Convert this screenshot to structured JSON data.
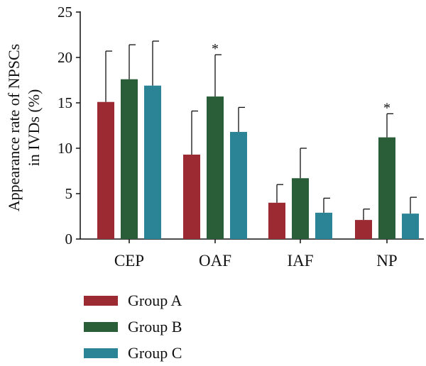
{
  "chart_data": {
    "type": "bar",
    "categories": [
      "CEP",
      "OAF",
      "IAF",
      "NP"
    ],
    "ylabel": [
      "Appearance rate of NPSCs",
      "in IVDs (%)"
    ],
    "ylim": [
      0,
      25
    ],
    "yticks": [
      "0",
      "5",
      "10",
      "15",
      "20",
      "25"
    ],
    "series": [
      {
        "name": "Group A",
        "color": "#9b2a32",
        "values": [
          15.1,
          9.3,
          4.0,
          2.1
        ],
        "errors": [
          5.6,
          4.8,
          2.0,
          1.2
        ]
      },
      {
        "name": "Group B",
        "color": "#2a5e38",
        "values": [
          17.6,
          15.7,
          6.7,
          11.2
        ],
        "errors": [
          3.8,
          4.6,
          3.3,
          2.6
        ]
      },
      {
        "name": "Group C",
        "color": "#2a8496",
        "values": [
          16.9,
          11.8,
          2.9,
          2.8
        ],
        "errors": [
          4.9,
          2.7,
          1.6,
          1.8
        ]
      }
    ],
    "annotations": [
      {
        "text": "*",
        "category": "OAF",
        "series": "Group B"
      },
      {
        "text": "*",
        "category": "NP",
        "series": "Group B"
      }
    ],
    "grid": false,
    "legend_position": "bottom-left"
  }
}
